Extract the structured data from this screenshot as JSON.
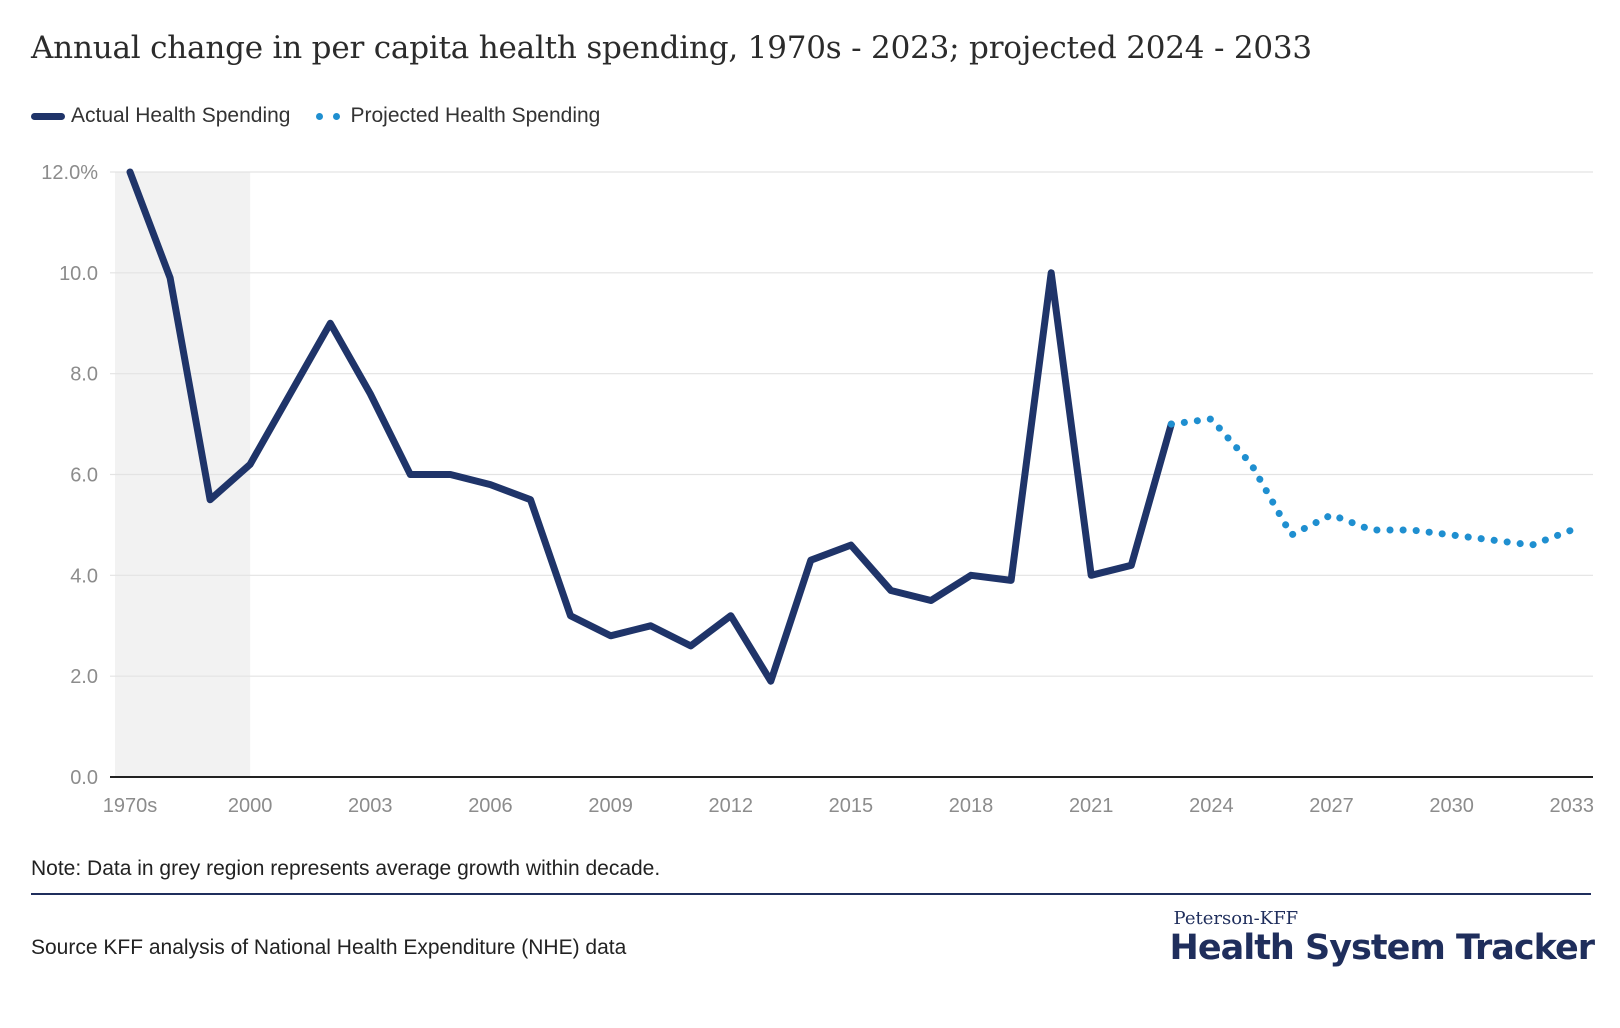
{
  "colors": {
    "actual": "#1f3469",
    "projected": "#1f8fd0",
    "grey_region": "#f2f2f2",
    "gridline": "#e3e3e3",
    "axis_text": "#8c8c8c",
    "divider": "#1f2e5c"
  },
  "chart_data": {
    "type": "line",
    "title": "Annual change in per capita health spending, 1970s - 2023; projected 2024 - 2033",
    "xlabel": "",
    "ylabel": "",
    "ylim": [
      0,
      12
    ],
    "yticks": [
      {
        "value": 0,
        "label": "0.0"
      },
      {
        "value": 2,
        "label": "2.0"
      },
      {
        "value": 4,
        "label": "4.0"
      },
      {
        "value": 6,
        "label": "6.0"
      },
      {
        "value": 8,
        "label": "8.0"
      },
      {
        "value": 10,
        "label": "10.0"
      },
      {
        "value": 12,
        "label": "12.0%"
      }
    ],
    "xticks": [
      "1970s",
      "2000",
      "2003",
      "2006",
      "2009",
      "2012",
      "2015",
      "2018",
      "2021",
      "2024",
      "2027",
      "2030",
      "2033"
    ],
    "shaded_region": {
      "from": "1970s",
      "to": "2000"
    },
    "grid": true,
    "legend_position": "top-left",
    "series": [
      {
        "name": "Actual Health Spending",
        "style": "solid",
        "points": [
          {
            "x": "1970s",
            "y": 12.0
          },
          {
            "x": "1980s",
            "y": 9.9
          },
          {
            "x": "1990s",
            "y": 5.5
          },
          {
            "x": "2000",
            "y": 6.2
          },
          {
            "x": "2001",
            "y": 7.6
          },
          {
            "x": "2002",
            "y": 9.0
          },
          {
            "x": "2003",
            "y": 7.6
          },
          {
            "x": "2004",
            "y": 6.0
          },
          {
            "x": "2005",
            "y": 6.0
          },
          {
            "x": "2006",
            "y": 5.8
          },
          {
            "x": "2007",
            "y": 5.5
          },
          {
            "x": "2008",
            "y": 3.2
          },
          {
            "x": "2009",
            "y": 2.8
          },
          {
            "x": "2010",
            "y": 3.0
          },
          {
            "x": "2011",
            "y": 2.6
          },
          {
            "x": "2012",
            "y": 3.2
          },
          {
            "x": "2013",
            "y": 1.9
          },
          {
            "x": "2014",
            "y": 4.3
          },
          {
            "x": "2015",
            "y": 4.6
          },
          {
            "x": "2016",
            "y": 3.7
          },
          {
            "x": "2017",
            "y": 3.5
          },
          {
            "x": "2018",
            "y": 4.0
          },
          {
            "x": "2019",
            "y": 3.9
          },
          {
            "x": "2020",
            "y": 10.0
          },
          {
            "x": "2021",
            "y": 4.0
          },
          {
            "x": "2022",
            "y": 4.2
          },
          {
            "x": "2023",
            "y": 7.0
          }
        ]
      },
      {
        "name": "Projected Health Spending",
        "style": "dotted",
        "points": [
          {
            "x": "2023",
            "y": 7.0
          },
          {
            "x": "2024",
            "y": 7.1
          },
          {
            "x": "2025",
            "y": 6.2
          },
          {
            "x": "2026",
            "y": 4.8
          },
          {
            "x": "2027",
            "y": 5.2
          },
          {
            "x": "2028",
            "y": 4.9
          },
          {
            "x": "2029",
            "y": 4.9
          },
          {
            "x": "2030",
            "y": 4.8
          },
          {
            "x": "2031",
            "y": 4.7
          },
          {
            "x": "2032",
            "y": 4.6
          },
          {
            "x": "2033",
            "y": 4.9
          }
        ]
      }
    ]
  },
  "note": "Note: Data in grey region represents average growth within decade.",
  "source": "Source KFF analysis of National Health Expenditure (NHE) data",
  "logo": {
    "top": "Peterson-KFF",
    "main": "Health System Tracker"
  }
}
